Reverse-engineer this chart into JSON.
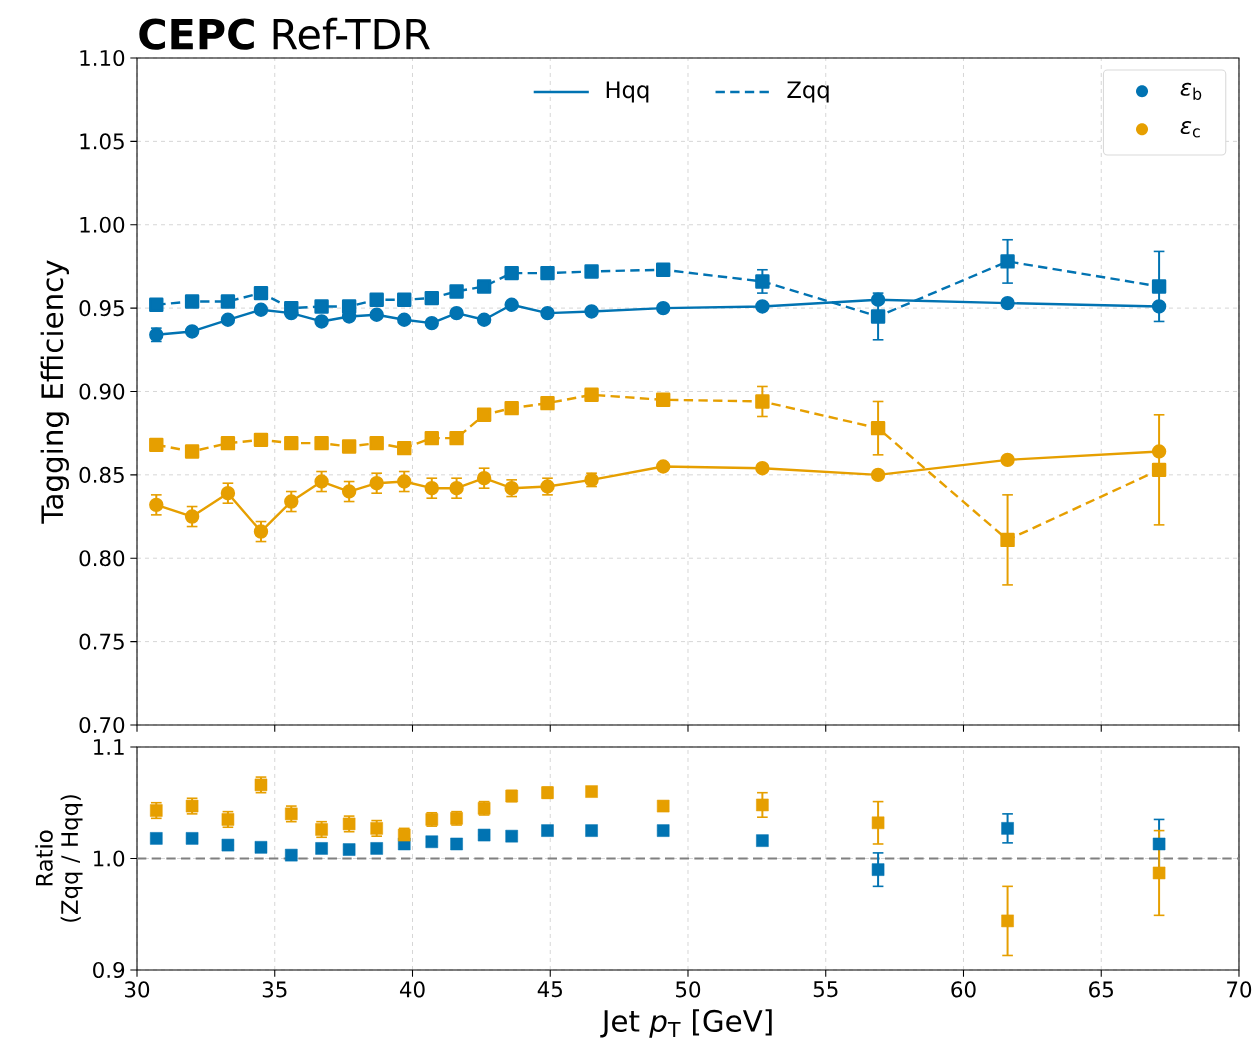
{
  "chart_data": [
    {
      "type": "line",
      "title": "**CEPC** Ref-TDR",
      "ylabel": "Tagging Efficiency",
      "xlim": [
        30,
        70
      ],
      "xticks": [
        30,
        35,
        40,
        45,
        50,
        55,
        60,
        65,
        70
      ],
      "ylim": [
        0.7,
        1.1
      ],
      "yticks": [
        {
          "value": 0.7,
          "label": "0.70"
        },
        {
          "value": 0.75,
          "label": "0.75"
        },
        {
          "value": 0.8,
          "label": "0.80"
        },
        {
          "value": 0.85,
          "label": "0.85"
        },
        {
          "value": 0.9,
          "label": "0.90"
        },
        {
          "value": 0.95,
          "label": "0.95"
        },
        {
          "value": 1.0,
          "label": "1.00"
        },
        {
          "value": 1.05,
          "label": "1.05"
        },
        {
          "value": 1.1,
          "label": "1.10"
        }
      ],
      "tick_labels": "y",
      "grid": true,
      "legend": "top",
      "x": [
        30.7,
        32.0,
        33.3,
        34.5,
        35.6,
        36.7,
        37.7,
        38.7,
        39.7,
        40.7,
        41.6,
        42.6,
        43.6,
        44.9,
        46.5,
        49.1,
        52.7,
        56.9,
        61.6,
        67.1
      ],
      "series": [
        {
          "name": "Hqq",
          "color": "#0173b2",
          "marker": "circle",
          "line_style": "solid",
          "values": [
            0.934,
            0.936,
            0.943,
            0.949,
            0.947,
            0.942,
            0.945,
            0.946,
            0.943,
            0.941,
            0.947,
            0.943,
            0.952,
            0.947,
            0.948,
            0.95,
            0.951,
            0.955,
            0.953,
            0.951
          ],
          "errors": [
            0.004,
            null,
            null,
            null,
            null,
            null,
            null,
            null,
            null,
            null,
            null,
            null,
            null,
            null,
            null,
            null,
            null,
            null,
            null,
            null
          ]
        },
        {
          "name": "Zqq",
          "color": "#0173b2",
          "marker": "square",
          "line_style": "dashed",
          "values": [
            0.952,
            0.954,
            0.954,
            0.959,
            0.95,
            0.951,
            0.951,
            0.955,
            0.955,
            0.956,
            0.96,
            0.963,
            0.971,
            0.971,
            0.972,
            0.973,
            0.966,
            0.945,
            0.978,
            0.963
          ],
          "errors": [
            null,
            null,
            null,
            null,
            null,
            null,
            null,
            null,
            null,
            null,
            null,
            null,
            null,
            null,
            null,
            null,
            0.007,
            0.014,
            0.013,
            0.021
          ]
        },
        {
          "color": "#e69f00",
          "marker": "circle",
          "line_style": "solid",
          "values": [
            0.832,
            0.825,
            0.839,
            0.816,
            0.834,
            0.846,
            0.84,
            0.845,
            0.846,
            0.842,
            0.842,
            0.848,
            0.842,
            0.843,
            0.847,
            0.855,
            0.854,
            0.85,
            0.859,
            0.864
          ],
          "errors": [
            0.006,
            0.006,
            0.006,
            0.006,
            0.006,
            0.006,
            0.006,
            0.006,
            0.006,
            0.006,
            0.006,
            0.006,
            0.005,
            0.005,
            0.004,
            null,
            null,
            null,
            null,
            null
          ]
        },
        {
          "color": "#e69f00",
          "marker": "square",
          "line_style": "dashed",
          "values": [
            0.868,
            0.864,
            0.869,
            0.871,
            0.869,
            0.869,
            0.867,
            0.869,
            0.866,
            0.872,
            0.872,
            0.886,
            0.89,
            0.893,
            0.898,
            0.895,
            0.894,
            0.878,
            0.811,
            0.853
          ],
          "errors": [
            null,
            null,
            null,
            null,
            null,
            null,
            null,
            null,
            null,
            null,
            null,
            null,
            null,
            null,
            null,
            null,
            0.009,
            0.016,
            0.027,
            0.033
          ]
        }
      ]
    },
    {
      "type": "scatter",
      "xlabel": "Jet *p*$_{T}$ [GeV]",
      "ylabel": "Ratio (Zqq / Hqq)",
      "xlim": [
        30,
        70
      ],
      "xticks": [
        30,
        35,
        40,
        45,
        50,
        55,
        60,
        65,
        70
      ],
      "ylim": [
        0.9,
        1.1
      ],
      "yticks": [
        0.9,
        {
          "value": 1.0,
          "label": "1.0"
        },
        1.1
      ],
      "grid": true,
      "legend": "top right",
      "marker": "square",
      "ref_lines": [
        {
          "axis": "y",
          "value": 1.0,
          "color": "#808080",
          "line_style": "dashed"
        }
      ],
      "x": [
        30.7,
        32.0,
        33.3,
        34.5,
        35.6,
        36.7,
        37.7,
        38.7,
        39.7,
        40.7,
        41.6,
        42.6,
        43.6,
        44.9,
        46.5,
        49.1,
        52.7,
        56.9,
        61.6,
        67.1
      ],
      "series": [
        {
          "name": "*ε*$_{b}$",
          "color": "#0173b2",
          "values": [
            1.018,
            1.018,
            1.012,
            1.01,
            1.003,
            1.009,
            1.008,
            1.009,
            1.013,
            1.015,
            1.013,
            1.021,
            1.02,
            1.025,
            1.025,
            1.025,
            1.016,
            0.99,
            1.027,
            1.013
          ],
          "errors": [
            null,
            null,
            null,
            null,
            null,
            null,
            null,
            null,
            null,
            null,
            null,
            null,
            null,
            null,
            null,
            null,
            0.004,
            0.015,
            0.013,
            0.022
          ]
        },
        {
          "name": "*ε*$_{c}$",
          "color": "#e69f00",
          "values": [
            1.043,
            1.047,
            1.035,
            1.066,
            1.04,
            1.026,
            1.031,
            1.027,
            1.021,
            1.035,
            1.036,
            1.045,
            1.056,
            1.059,
            1.06,
            1.047,
            1.048,
            1.032,
            0.944,
            0.987
          ],
          "errors": [
            0.007,
            0.007,
            0.007,
            0.007,
            0.007,
            0.007,
            0.007,
            0.007,
            0.006,
            0.006,
            0.006,
            0.006,
            0.005,
            0.005,
            0.004,
            0.004,
            0.011,
            0.019,
            0.031,
            0.038
          ]
        }
      ]
    }
  ]
}
